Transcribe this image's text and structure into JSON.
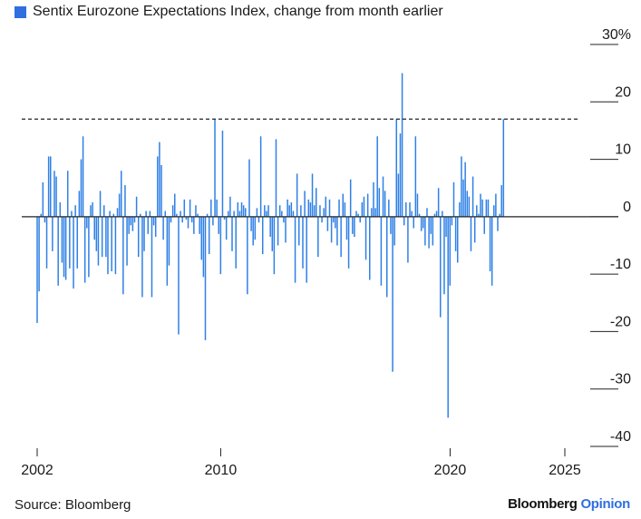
{
  "colors": {
    "bar": "#2f80e6",
    "legend_swatch": "#2f6fe0",
    "brand_accent": "#2f6fe0"
  },
  "source": "Source: Bloomberg",
  "brand": {
    "main": "Bloomberg",
    "accent": "Opinion"
  },
  "chart_data": {
    "type": "bar",
    "legend": [
      {
        "name": "Sentix Eurozone Expectations Index, change from month earlier"
      }
    ],
    "y_unit": "%",
    "ylim": [
      -40,
      30
    ],
    "y_ticks": [
      30,
      20,
      10,
      0,
      -10,
      -20,
      -30,
      -40
    ],
    "y_tick_labels": [
      "30%",
      "20",
      "10",
      "0",
      "-10",
      "-20",
      "-30",
      "-40"
    ],
    "xlim": [
      2002.0,
      2026.0
    ],
    "x_ticks": [
      2002,
      2010,
      2020,
      2025
    ],
    "x_tick_labels": [
      "2002",
      "2010",
      "2020",
      "2025"
    ],
    "reference_line": {
      "value": 17,
      "style": "dashed"
    },
    "series": [
      {
        "name": "Sentix Eurozone Expectations Index, change from month earlier",
        "x_start": 2002.0,
        "x_step": 0.0833,
        "values": [
          -18.5,
          -13,
          0.5,
          6,
          -1,
          -9,
          10.5,
          10.5,
          -6,
          8,
          7,
          -12,
          2.5,
          -8,
          -10.5,
          -11,
          8,
          -9,
          1,
          -12.5,
          2,
          -9,
          4.5,
          10,
          14,
          -11.5,
          -2,
          -10.5,
          2,
          2.5,
          -4,
          -6,
          -8.5,
          4.5,
          -7,
          2,
          -7,
          -10,
          1,
          -9.5,
          0.5,
          -10,
          1.5,
          4,
          8,
          -13.5,
          5.5,
          -8.5,
          -3,
          -1.5,
          -2.5,
          -1,
          3.5,
          -7,
          0.5,
          -14,
          -6,
          1,
          -3,
          1,
          -14,
          -1.5,
          -3.5,
          10.5,
          13,
          9,
          -4,
          1,
          -12,
          -8.5,
          -1,
          2,
          4,
          0.5,
          -20.5,
          1,
          -1,
          3,
          -0.5,
          -2,
          3,
          -1,
          -3,
          2,
          0.5,
          -3,
          -7.5,
          -10.5,
          -21.5,
          0.5,
          -6.5,
          3,
          -1.5,
          17,
          3,
          -3,
          -10,
          15,
          -0.5,
          -4,
          1,
          3.5,
          -6,
          1,
          -9,
          2.5,
          1,
          2.5,
          2,
          1.5,
          -13.5,
          10,
          -2.5,
          -5,
          -4,
          1.5,
          -1,
          14,
          -6.5,
          2,
          1,
          2,
          -3.5,
          -6,
          -10,
          13.5,
          -5,
          2,
          1,
          -1,
          -4.5,
          3,
          2,
          2.5,
          1,
          -11.5,
          7.5,
          -5,
          2,
          -9,
          4.5,
          -11.5,
          3,
          2.5,
          7.5,
          2,
          5,
          -7,
          2,
          -1,
          1.5,
          3.5,
          -2.5,
          3,
          -4.5,
          -1,
          -2,
          -5,
          3,
          -7,
          4,
          2.5,
          -4,
          -9,
          6.5,
          -3,
          -3.5,
          1,
          0.5,
          -1,
          2.5,
          3.5,
          -7.5,
          4,
          -11,
          1.5,
          6,
          1.5,
          14,
          5,
          -12,
          7,
          4.5,
          -14,
          3,
          -3,
          -27,
          -5,
          17,
          7.5,
          14.5,
          25,
          -1.5,
          2.5,
          -8,
          2.5,
          1,
          -2,
          14,
          4,
          0.5,
          -2.5,
          -2,
          -5,
          1.5,
          -5.5,
          -3,
          -5,
          0.5,
          1,
          5,
          -17.5,
          1,
          -13.5,
          -3.5,
          -35,
          -12,
          -1.5,
          6,
          -6,
          -8,
          2.5,
          10.5,
          6.5,
          9.5,
          4.5,
          3.5,
          -6,
          7,
          -4.5,
          2,
          0.5,
          4,
          3,
          -3,
          3,
          3,
          -9.5,
          -12,
          2,
          4,
          -2.5,
          0.5,
          5.5,
          17
        ]
      }
    ]
  }
}
